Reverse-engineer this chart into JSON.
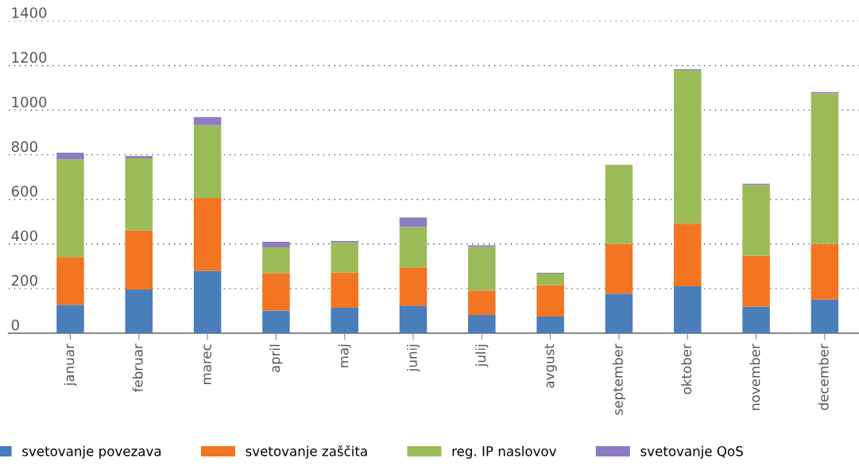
{
  "chart_data": {
    "type": "bar",
    "stacked": true,
    "categories": [
      "januar",
      "februar",
      "marec",
      "april",
      "maj",
      "junij",
      "julij",
      "avgust",
      "september",
      "oktober",
      "november",
      "december"
    ],
    "series": [
      {
        "name": "svetovanje povezava",
        "color": "#4a7ebb",
        "values": [
          127,
          196,
          280,
          102,
          114,
          124,
          82,
          75,
          177,
          210,
          119,
          151
        ]
      },
      {
        "name": "svetovanje zaščita",
        "color": "#f37521",
        "values": [
          214,
          265,
          326,
          167,
          158,
          171,
          109,
          141,
          224,
          281,
          228,
          250
        ]
      },
      {
        "name": "reg. IP naslovov",
        "color": "#9bbb59",
        "values": [
          439,
          323,
          326,
          116,
          135,
          181,
          196,
          51,
          354,
          689,
          318,
          674
        ]
      },
      {
        "name": "svetovanje QoS",
        "color": "#8e7cc3",
        "values": [
          29,
          10,
          37,
          25,
          7,
          43,
          7,
          4,
          0,
          4,
          5,
          6
        ]
      }
    ],
    "ylim": [
      0,
      1400
    ],
    "yticks": [
      0,
      200,
      400,
      600,
      800,
      1000,
      1200,
      1400
    ],
    "grid": "y",
    "legend": "bottom"
  }
}
